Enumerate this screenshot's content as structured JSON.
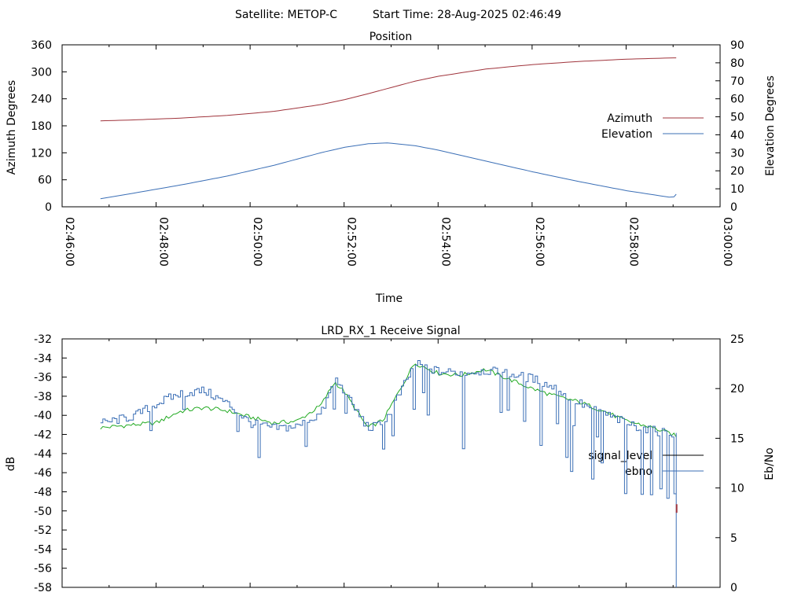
{
  "header": {
    "satellite_label": "Satellite: METOP-C",
    "start_time_label": "Start Time: 28-Aug-2025 02:46:49"
  },
  "chart_data": [
    {
      "type": "line",
      "title": "Position",
      "xlabel": "Time",
      "ylabel": "Azimuth Degrees",
      "y2label": "Elevation Degrees",
      "xlim": [
        "02:46:00",
        "03:00:00"
      ],
      "x_ticks": [
        "02:46:00",
        "02:48:00",
        "02:50:00",
        "02:52:00",
        "02:54:00",
        "02:56:00",
        "02:58:00",
        "03:00:00"
      ],
      "ylim": [
        0,
        360
      ],
      "y_ticks": [
        "0",
        "60",
        "120",
        "180",
        "240",
        "300",
        "360"
      ],
      "y2lim": [
        0,
        90
      ],
      "y2_ticks": [
        "0",
        "10",
        "20",
        "30",
        "40",
        "50",
        "60",
        "70",
        "80",
        "90"
      ],
      "grid": false,
      "legend_position": "right",
      "colors": {
        "azimuth": "#a0343c",
        "elevation": "#3b6fb6"
      },
      "series": [
        {
          "name": "Azimuth",
          "axis": "left",
          "x": [
            "02:46:49",
            "02:47:30",
            "02:48:30",
            "02:49:30",
            "02:50:30",
            "02:51:30",
            "02:52:00",
            "02:52:30",
            "02:53:00",
            "02:53:30",
            "02:54:00",
            "02:55:00",
            "02:56:00",
            "02:57:00",
            "02:58:00",
            "02:59:00",
            "02:59:04"
          ],
          "values": [
            191,
            193,
            197,
            203,
            212,
            227,
            238,
            251,
            265,
            279,
            290,
            306,
            316,
            323,
            328,
            331,
            331
          ]
        },
        {
          "name": "Elevation",
          "axis": "right",
          "x": [
            "02:46:49",
            "02:47:30",
            "02:48:30",
            "02:49:30",
            "02:50:30",
            "02:51:30",
            "02:52:00",
            "02:52:30",
            "02:52:55",
            "02:53:30",
            "02:54:00",
            "02:55:00",
            "02:56:00",
            "02:57:00",
            "02:58:00",
            "02:59:00",
            "02:59:04"
          ],
          "values": [
            4.5,
            7.5,
            12,
            17,
            23,
            30,
            33,
            35,
            35.5,
            34,
            31.5,
            25.5,
            19.5,
            14,
            9,
            5,
            7
          ]
        }
      ]
    },
    {
      "type": "line",
      "title": "LRD_RX_1 Receive Signal",
      "xlabel": "",
      "ylabel": "dB",
      "y2label": "Eb/No",
      "xlim": [
        "02:46:00",
        "03:00:00"
      ],
      "ylim": [
        -58,
        -32
      ],
      "y_ticks": [
        "-32",
        "-34",
        "-36",
        "-38",
        "-40",
        "-42",
        "-44",
        "-46",
        "-48",
        "-50",
        "-52",
        "-54",
        "-56",
        "-58"
      ],
      "y2lim": [
        0,
        25
      ],
      "y2_ticks": [
        "0",
        "5",
        "10",
        "15",
        "20",
        "25"
      ],
      "grid": false,
      "legend_position": "right",
      "colors": {
        "signal_level": "#000000",
        "ebno": "#3b6fb6",
        "signal_line": "#22aa22"
      },
      "series": [
        {
          "name": "signal_level",
          "axis": "left",
          "x": [
            "02:46:49",
            "02:47:30",
            "02:48:00",
            "02:48:30",
            "02:49:00",
            "02:49:30",
            "02:50:00",
            "02:50:30",
            "02:51:00",
            "02:51:30",
            "02:51:48",
            "02:52:00",
            "02:52:30",
            "02:52:50",
            "02:53:00",
            "02:53:30",
            "02:54:00",
            "02:54:30",
            "02:55:00",
            "02:55:30",
            "02:56:00",
            "02:56:30",
            "02:57:00",
            "02:57:30",
            "02:58:00",
            "02:58:30",
            "02:59:00",
            "02:59:04"
          ],
          "values": [
            -41.3,
            -41,
            -40.8,
            -39.6,
            -39.2,
            -39.5,
            -40.2,
            -40.8,
            -40.6,
            -39,
            -36.5,
            -37.5,
            -41.3,
            -40.5,
            -39,
            -34.5,
            -35.6,
            -35.8,
            -35.2,
            -36.2,
            -37.2,
            -38,
            -38.6,
            -39.5,
            -40.6,
            -41.2,
            -42,
            -42.3
          ]
        },
        {
          "name": "ebno",
          "axis": "right",
          "x": [
            "02:46:49",
            "02:47:30",
            "02:48:00",
            "02:48:30",
            "02:49:00",
            "02:49:30",
            "02:50:00",
            "02:50:30",
            "02:51:00",
            "02:51:30",
            "02:51:48",
            "02:52:00",
            "02:52:30",
            "02:52:50",
            "02:53:00",
            "02:53:30",
            "02:54:00",
            "02:54:30",
            "02:55:00",
            "02:55:30",
            "02:56:00",
            "02:56:30",
            "02:57:00",
            "02:57:30",
            "02:58:00",
            "02:58:30",
            "02:59:00",
            "02:59:04"
          ],
          "values": [
            16.5,
            17.2,
            18.5,
            19.5,
            19.8,
            18.5,
            16.5,
            16,
            16.2,
            17.5,
            21,
            19.5,
            16,
            16.5,
            18,
            22.5,
            21.7,
            21.6,
            21.8,
            21.5,
            21,
            20,
            18.5,
            17.5,
            16.5,
            15.8,
            15.5,
            15.5
          ]
        }
      ]
    }
  ]
}
